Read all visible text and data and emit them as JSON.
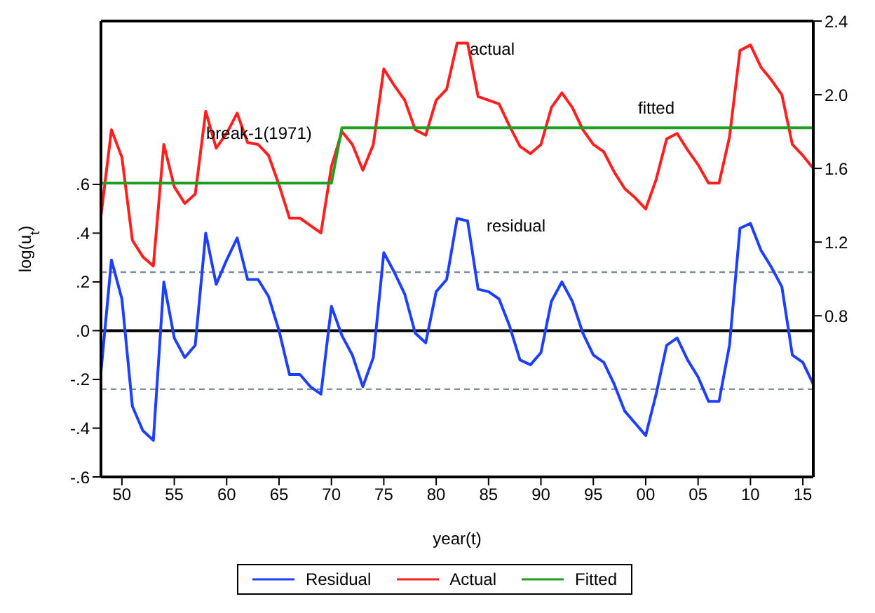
{
  "chart_data": {
    "type": "line",
    "xlabel": "year(t)",
    "ylabel": "log(u$_{t}$)",
    "x": [
      1948,
      1949,
      1950,
      1951,
      1952,
      1953,
      1954,
      1955,
      1956,
      1957,
      1958,
      1959,
      1960,
      1961,
      1962,
      1963,
      1964,
      1965,
      1966,
      1967,
      1968,
      1969,
      1970,
      1971,
      1972,
      1973,
      1974,
      1975,
      1976,
      1977,
      1978,
      1979,
      1980,
      1981,
      1982,
      1983,
      1984,
      1985,
      1986,
      1987,
      1988,
      1989,
      1990,
      1991,
      1992,
      1993,
      1994,
      1995,
      1996,
      1997,
      1998,
      1999,
      2000,
      2001,
      2002,
      2003,
      2004,
      2005,
      2006,
      2007,
      2008,
      2009,
      2010,
      2011,
      2012,
      2013,
      2014,
      2015,
      2016
    ],
    "series": [
      {
        "name": "Residual",
        "color": "#1f3fff",
        "values": [
          -0.17,
          0.29,
          0.13,
          -0.31,
          -0.41,
          -0.45,
          0.2,
          -0.03,
          -0.11,
          -0.06,
          0.4,
          0.19,
          0.29,
          0.38,
          0.21,
          0.21,
          0.14,
          0.0,
          -0.18,
          -0.18,
          -0.23,
          -0.26,
          0.1,
          -0.02,
          -0.1,
          -0.23,
          -0.11,
          0.32,
          0.24,
          0.15,
          -0.01,
          -0.05,
          0.16,
          0.21,
          0.46,
          0.45,
          0.17,
          0.16,
          0.13,
          0.02,
          -0.12,
          -0.14,
          -0.09,
          0.12,
          0.2,
          0.12,
          -0.01,
          -0.1,
          -0.13,
          -0.22,
          -0.33,
          -0.38,
          -0.43,
          -0.26,
          -0.06,
          -0.03,
          -0.12,
          -0.19,
          -0.29,
          -0.29,
          -0.06,
          0.42,
          0.44,
          0.33,
          0.26,
          0.18,
          -0.1,
          -0.13,
          -0.22
        ]
      },
      {
        "name": "Actual",
        "color": "#ff1f1f",
        "axis": "y2",
        "values": [
          1.34,
          1.81,
          1.66,
          1.21,
          1.12,
          1.07,
          1.73,
          1.5,
          1.41,
          1.46,
          1.91,
          1.71,
          1.79,
          1.9,
          1.74,
          1.73,
          1.67,
          1.51,
          1.33,
          1.33,
          1.29,
          1.25,
          1.61,
          1.8,
          1.73,
          1.59,
          1.73,
          2.14,
          2.05,
          1.97,
          1.81,
          1.78,
          1.97,
          2.03,
          2.28,
          2.28,
          1.99,
          1.97,
          1.95,
          1.83,
          1.72,
          1.68,
          1.73,
          1.93,
          2.01,
          1.93,
          1.81,
          1.73,
          1.69,
          1.58,
          1.49,
          1.44,
          1.38,
          1.54,
          1.76,
          1.79,
          1.7,
          1.62,
          1.52,
          1.52,
          1.77,
          2.24,
          2.27,
          2.15,
          2.08,
          2.0,
          1.73,
          1.67,
          1.6
        ]
      },
      {
        "name": "Fitted",
        "color": "#1f9f1f",
        "axis": "y2",
        "values": [
          1.52,
          1.52,
          1.52,
          1.52,
          1.52,
          1.52,
          1.52,
          1.52,
          1.52,
          1.52,
          1.52,
          1.52,
          1.52,
          1.52,
          1.52,
          1.52,
          1.52,
          1.52,
          1.52,
          1.52,
          1.52,
          1.52,
          1.52,
          1.82,
          1.82,
          1.82,
          1.82,
          1.82,
          1.82,
          1.82,
          1.82,
          1.82,
          1.82,
          1.82,
          1.82,
          1.82,
          1.82,
          1.82,
          1.82,
          1.82,
          1.82,
          1.82,
          1.82,
          1.82,
          1.82,
          1.82,
          1.82,
          1.82,
          1.82,
          1.82,
          1.82,
          1.82,
          1.82,
          1.82,
          1.82,
          1.82,
          1.82,
          1.82,
          1.82,
          1.82,
          1.82,
          1.82,
          1.82,
          1.82,
          1.82,
          1.82,
          1.82,
          1.82,
          1.82
        ]
      }
    ],
    "xlim": [
      1948,
      2016
    ],
    "xticks": [
      {
        "value": 1950,
        "label": "50"
      },
      {
        "value": 1955,
        "label": "55"
      },
      {
        "value": 1960,
        "label": "60"
      },
      {
        "value": 1965,
        "label": "65"
      },
      {
        "value": 1970,
        "label": "70"
      },
      {
        "value": 1975,
        "label": "75"
      },
      {
        "value": 1980,
        "label": "80"
      },
      {
        "value": 1985,
        "label": "85"
      },
      {
        "value": 1990,
        "label": "90"
      },
      {
        "value": 1995,
        "label": "95"
      },
      {
        "value": 2000,
        "label": "00"
      },
      {
        "value": 2005,
        "label": "05"
      },
      {
        "value": 2010,
        "label": "10"
      },
      {
        "value": 2015,
        "label": "15"
      }
    ],
    "ylim": [
      -0.6,
      1.27
    ],
    "yticks": [
      {
        "value": -0.6,
        "label": "-.6"
      },
      {
        "value": -0.4,
        "label": "-.4"
      },
      {
        "value": -0.2,
        "label": "-.2"
      },
      {
        "value": 0,
        "label": ".0"
      },
      {
        "value": 0.2,
        "label": ".2"
      },
      {
        "value": 0.4,
        "label": ".4"
      },
      {
        "value": 0.6,
        "label": ".6"
      }
    ],
    "y2lim": [
      -0.075,
      2.4
    ],
    "y2ticks": [
      0.8,
      1.2,
      1.6,
      {
        "value": 2.0,
        "label": "2.0"
      },
      2.4
    ],
    "ref_lines": [
      {
        "axis": "y",
        "value": 0,
        "color": "#000000",
        "line_style": "solid"
      },
      {
        "axis": "y",
        "value": 0.24,
        "color": "#7f8f99",
        "line_style": "dashed"
      },
      {
        "axis": "y",
        "value": -0.24,
        "color": "#7f8f99",
        "line_style": "dashed"
      }
    ],
    "annotations": [
      "break-1(1971)",
      "actual",
      "fitted",
      "residual"
    ],
    "grid": false,
    "legend": "bottom",
    "marker": "none",
    "line_style": "solid"
  }
}
